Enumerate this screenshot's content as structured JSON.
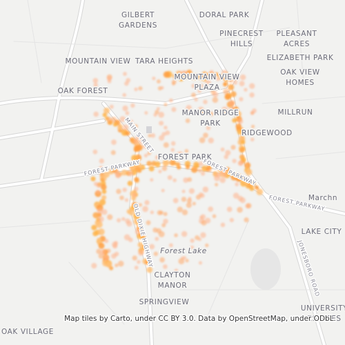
{
  "places": [
    {
      "lines": [
        "GILBERT",
        "GARDENS"
      ]
    },
    {
      "lines": [
        "DORAL PARK"
      ]
    },
    {
      "lines": [
        "PINECREST",
        "HILLS"
      ]
    },
    {
      "lines": [
        "PLEASANT",
        "ACRES"
      ]
    },
    {
      "lines": [
        "MOUNTAIN VIEW"
      ]
    },
    {
      "lines": [
        "TARA HEIGHTS"
      ]
    },
    {
      "lines": [
        "ELIZABETH PARK"
      ]
    },
    {
      "lines": [
        "MOUNTAIN VIEW",
        "PLAZA"
      ]
    },
    {
      "lines": [
        "OAK VIEW",
        "HOMES"
      ]
    },
    {
      "lines": [
        "OAK FOREST"
      ]
    },
    {
      "lines": [
        "MILLRUN"
      ]
    },
    {
      "lines": [
        "MANOR RIDGE",
        "PARK"
      ]
    },
    {
      "lines": [
        "RIDGEWOOD"
      ]
    },
    {
      "lines": [
        "FOREST PARK"
      ]
    },
    {
      "lines": [
        "Marchn"
      ]
    },
    {
      "lines": [
        "LAKE CITY"
      ]
    },
    {
      "lines": [
        "Forest Lake"
      ]
    },
    {
      "lines": [
        "CLAYTON",
        "MANOR"
      ]
    },
    {
      "lines": [
        "SPRINGVIEW"
      ]
    },
    {
      "lines": [
        "UNIVERSITY",
        "ESTATES"
      ]
    },
    {
      "lines": [
        "OAK VILLAGE"
      ]
    }
  ],
  "roads": [
    "FOREST PARKWAY",
    "FOREST PARKWAY",
    "FOREST PARKWAY",
    "MAIN STREET",
    "OLD DIXIE HIGHWAY",
    "JONESBORO ROAD"
  ],
  "attribution": "Map tiles by Carto, under CC BY 3.0. Data by OpenStreetMap, under ODbL."
}
